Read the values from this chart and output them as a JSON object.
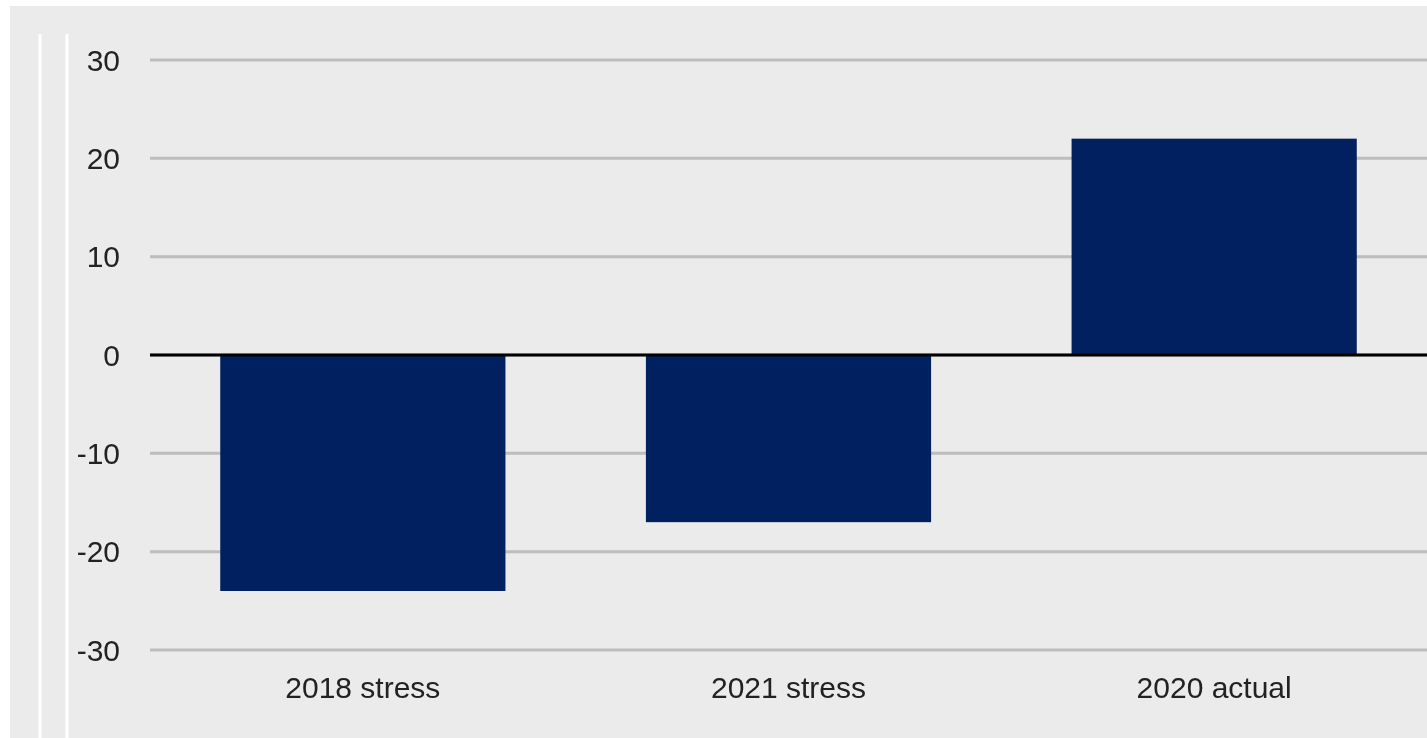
{
  "chart_data": {
    "type": "bar",
    "categories": [
      "2018 stress",
      "2021 stress",
      "2020 actual"
    ],
    "values": [
      -24,
      -17,
      22
    ],
    "color": "#002060",
    "ylim": [
      -30,
      30
    ],
    "yticks": [
      -30,
      -20,
      -10,
      0,
      10,
      20,
      30
    ],
    "grid": "y"
  }
}
